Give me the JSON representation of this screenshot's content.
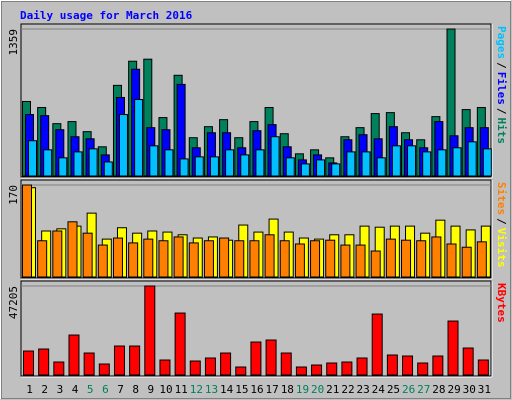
{
  "title": "Daily usage for March 2016",
  "chart_data": [
    {
      "type": "bar",
      "legend_separator": "/",
      "series": [
        {
          "name": "Hits",
          "color": "#00805c",
          "values": [
            689,
            633,
            484,
            503,
            410,
            270,
            838,
            1061,
            1080,
            540,
            931,
            354,
            456,
            521,
            354,
            503,
            633,
            391,
            205,
            242,
            168,
            363,
            447,
            577,
            586,
            400,
            335,
            549,
            1359,
            614,
            633
          ]
        },
        {
          "name": "Files",
          "color": "#0000ff",
          "values": [
            568,
            558,
            428,
            363,
            344,
            195,
            726,
            987,
            447,
            428,
            847,
            261,
            400,
            400,
            261,
            419,
            475,
            270,
            149,
            195,
            121,
            335,
            382,
            344,
            456,
            335,
            261,
            503,
            372,
            447,
            447
          ]
        },
        {
          "name": "Pages",
          "color": "#00c0ff",
          "values": [
            326,
            242,
            168,
            223,
            251,
            130,
            568,
            707,
            279,
            242,
            158,
            177,
            177,
            242,
            195,
            242,
            363,
            168,
            112,
            149,
            112,
            223,
            223,
            168,
            279,
            279,
            223,
            242,
            261,
            316,
            251
          ]
        }
      ],
      "ylim": [
        0,
        1359
      ],
      "yticks": [
        1359
      ],
      "grid": true
    },
    {
      "type": "bar",
      "legend_separator": "/",
      "series": [
        {
          "name": "Visits",
          "color": "#ffff00",
          "values": [
            165,
            85,
            89,
            94,
            118,
            70,
            91,
            81,
            85,
            83,
            78,
            72,
            74,
            68,
            96,
            83,
            107,
            83,
            72,
            70,
            78,
            78,
            94,
            92,
            94,
            94,
            81,
            105,
            94,
            87,
            94
          ]
        },
        {
          "name": "Sites",
          "color": "#ff8000",
          "values": [
            170,
            67,
            85,
            102,
            81,
            59,
            72,
            63,
            70,
            67,
            74,
            63,
            67,
            72,
            67,
            67,
            78,
            67,
            61,
            67,
            68,
            59,
            59,
            48,
            70,
            68,
            67,
            74,
            61,
            55,
            65
          ]
        }
      ],
      "ylim": [
        0,
        170
      ],
      "yticks": [
        170
      ],
      "grid": true
    },
    {
      "type": "bar",
      "categories": [
        "1",
        "2",
        "3",
        "4",
        "5",
        "6",
        "7",
        "8",
        "9",
        "10",
        "11",
        "12",
        "13",
        "14",
        "15",
        "16",
        "17",
        "18",
        "19",
        "20",
        "21",
        "22",
        "23",
        "24",
        "25",
        "26",
        "27",
        "28",
        "29",
        "30",
        "31"
      ],
      "category_colors": [
        "#000000",
        "#000000",
        "#000000",
        "#000000",
        "#00805c",
        "#00805c",
        "#000000",
        "#000000",
        "#000000",
        "#000000",
        "#000000",
        "#00805c",
        "#00805c",
        "#000000",
        "#000000",
        "#000000",
        "#000000",
        "#000000",
        "#00805c",
        "#00805c",
        "#000000",
        "#000000",
        "#000000",
        "#000000",
        "#000000",
        "#00805c",
        "#00805c",
        "#000000",
        "#000000",
        "#000000",
        "#000000"
      ],
      "series": [
        {
          "name": "KBytes",
          "color": "#ff0000",
          "values": [
            12720,
            13780,
            6890,
            21200,
            11660,
            5830,
            15370,
            15370,
            47205,
            7950,
            32860,
            7420,
            9010,
            11660,
            4240,
            17490,
            18550,
            11660,
            4240,
            5300,
            6360,
            6890,
            9010,
            32330,
            10600,
            10070,
            6360,
            10070,
            28620,
            14310,
            7950
          ]
        }
      ],
      "ylim": [
        0,
        47205
      ],
      "yticks": [
        47205
      ],
      "grid": true
    }
  ]
}
